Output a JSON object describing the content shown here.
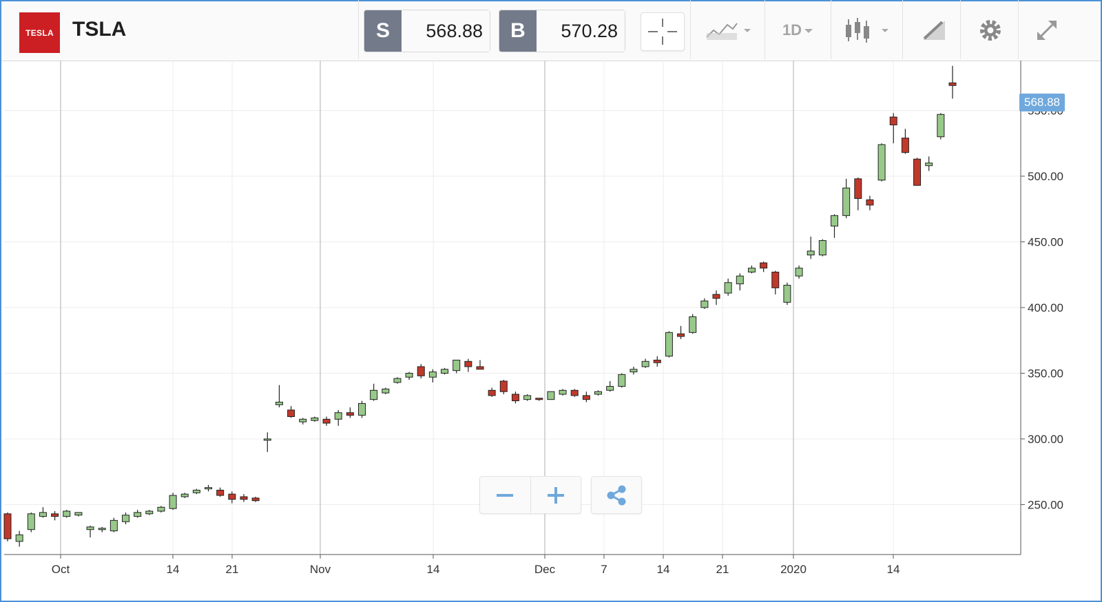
{
  "header": {
    "logo_text": "TESLA",
    "symbol": "TSLA",
    "sell_label": "S",
    "sell_price": "568.88",
    "buy_label": "B",
    "buy_price": "570.28",
    "timeframe": "1D"
  },
  "icons": {
    "crosshair": "crosshair-icon",
    "chart_type": "line-chart-icon",
    "candles": "candlestick-icon",
    "draw": "pencil-ruler-icon",
    "settings": "gear-icon",
    "fullscreen": "expand-icon",
    "zoom_out": "minus-icon",
    "zoom_in": "plus-icon",
    "share": "share-icon"
  },
  "colors": {
    "up": "#98c98a",
    "down": "#c0392b",
    "accent": "#6fa8dc",
    "brand": "#cc1f24"
  },
  "chart_data": {
    "type": "candlestick",
    "last_price_label": "568.88",
    "ylim": [
      212,
      588
    ],
    "y_ticks": [
      "250.00",
      "300.00",
      "350.00",
      "400.00",
      "450.00",
      "500.00",
      "550.00"
    ],
    "x_ticks": [
      "Oct",
      "14",
      "21",
      "Nov",
      "14",
      "Dec",
      "7",
      "14",
      "21",
      "2020",
      "14"
    ],
    "grid": true,
    "candles": [
      [
        243,
        244,
        222,
        224
      ],
      [
        222,
        230,
        218,
        227
      ],
      [
        231,
        244,
        229,
        243
      ],
      [
        241,
        248,
        240,
        244
      ],
      [
        243,
        245,
        238,
        241
      ],
      [
        241,
        246,
        240,
        245
      ],
      [
        242,
        244,
        241,
        244
      ],
      [
        231,
        234,
        225,
        233
      ],
      [
        231,
        233,
        229,
        232
      ],
      [
        230,
        240,
        229,
        238
      ],
      [
        237,
        244,
        235,
        242
      ],
      [
        241,
        246,
        240,
        244
      ],
      [
        243,
        246,
        242,
        245
      ],
      [
        245,
        249,
        244,
        248
      ],
      [
        247,
        259,
        246,
        257
      ],
      [
        256,
        259,
        255,
        258
      ],
      [
        259,
        262,
        258,
        261
      ],
      [
        262,
        265,
        260,
        263
      ],
      [
        261,
        263,
        256,
        257
      ],
      [
        258,
        260,
        251,
        254
      ],
      [
        256,
        258,
        252,
        254
      ],
      [
        255,
        256,
        252,
        253
      ],
      [
        299,
        305,
        290,
        300
      ],
      [
        326,
        341,
        324,
        328
      ],
      [
        322,
        325,
        316,
        317
      ],
      [
        313,
        316,
        311,
        315
      ],
      [
        314,
        317,
        313,
        316
      ],
      [
        315,
        317,
        310,
        312
      ],
      [
        315,
        322,
        310,
        320
      ],
      [
        320,
        324,
        316,
        318
      ],
      [
        318,
        329,
        316,
        327
      ],
      [
        330,
        342,
        329,
        337
      ],
      [
        335,
        339,
        334,
        338
      ],
      [
        343,
        347,
        342,
        346
      ],
      [
        347,
        351,
        345,
        350
      ],
      [
        355,
        357,
        346,
        348
      ],
      [
        347,
        353,
        343,
        351
      ],
      [
        350,
        354,
        349,
        353
      ],
      [
        352,
        360,
        350,
        360
      ],
      [
        359,
        361,
        351,
        355
      ],
      [
        355,
        360,
        353,
        353
      ],
      [
        337,
        339,
        332,
        333
      ],
      [
        344,
        345,
        334,
        336
      ],
      [
        334,
        336,
        327,
        329
      ],
      [
        330,
        334,
        329,
        333
      ],
      [
        331,
        331,
        329,
        330
      ],
      [
        330,
        336,
        330,
        336
      ],
      [
        334,
        338,
        333,
        337
      ],
      [
        337,
        338,
        332,
        333
      ],
      [
        333,
        336,
        328,
        330
      ],
      [
        334,
        337,
        333,
        336
      ],
      [
        337,
        344,
        336,
        340
      ],
      [
        340,
        350,
        339,
        349
      ],
      [
        351,
        355,
        349,
        353
      ],
      [
        355,
        361,
        354,
        359
      ],
      [
        360,
        363,
        355,
        358
      ],
      [
        363,
        382,
        362,
        381
      ],
      [
        380,
        386,
        376,
        378
      ],
      [
        381,
        395,
        380,
        393
      ],
      [
        400,
        407,
        399,
        405
      ],
      [
        410,
        413,
        402,
        407
      ],
      [
        411,
        422,
        409,
        419
      ],
      [
        418,
        426,
        413,
        424
      ],
      [
        427,
        432,
        426,
        430
      ],
      [
        434,
        435,
        427,
        430
      ],
      [
        427,
        428,
        410,
        415
      ],
      [
        404,
        419,
        402,
        417
      ],
      [
        424,
        432,
        422,
        430
      ],
      [
        440,
        454,
        437,
        443
      ],
      [
        440,
        452,
        439,
        451
      ],
      [
        462,
        471,
        453,
        470
      ],
      [
        470,
        498,
        468,
        491
      ],
      [
        498,
        499,
        474,
        483
      ],
      [
        482,
        485,
        474,
        478
      ],
      [
        497,
        525,
        496,
        524
      ],
      [
        545,
        548,
        525,
        539
      ],
      [
        529,
        536,
        517,
        518
      ],
      [
        513,
        514,
        493,
        493
      ],
      [
        508,
        515,
        504,
        510
      ],
      [
        530,
        548,
        528,
        547
      ],
      [
        571,
        584,
        559,
        569
      ]
    ]
  }
}
